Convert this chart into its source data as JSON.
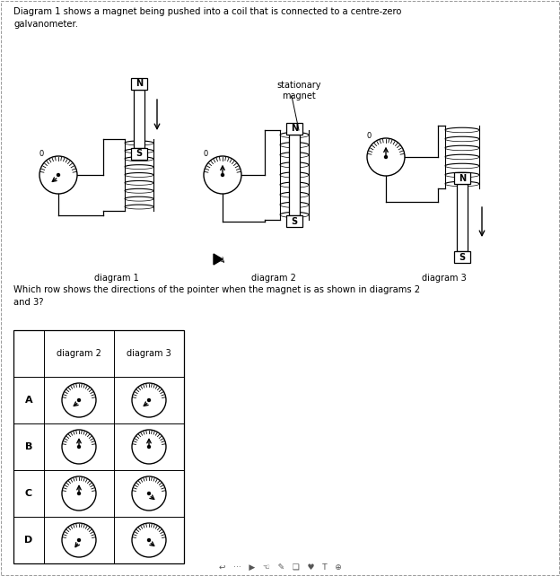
{
  "title_text": "Diagram 1 shows a magnet being pushed into a coil that is connected to a centre-zero\ngalvanometer.",
  "question_text": "Which row shows the directions of the pointer when the magnet is as shown in diagrams 2\nand 3?",
  "diagram_labels": [
    "diagram 1",
    "diagram 2",
    "diagram 3"
  ],
  "stationary_magnet_label": "stationary\nmagnet",
  "table_rows": [
    "A",
    "B",
    "C",
    "D"
  ],
  "table_cols": [
    "diagram 2",
    "diagram 3"
  ],
  "bg_color": "#ffffff",
  "text_color": "#000000",
  "gauge_needle_angles_deg": {
    "A2": -135,
    "A3": -135,
    "B2": 90,
    "B3": 90,
    "C2": 90,
    "C3": -45,
    "D2": -120,
    "D3": -45
  }
}
